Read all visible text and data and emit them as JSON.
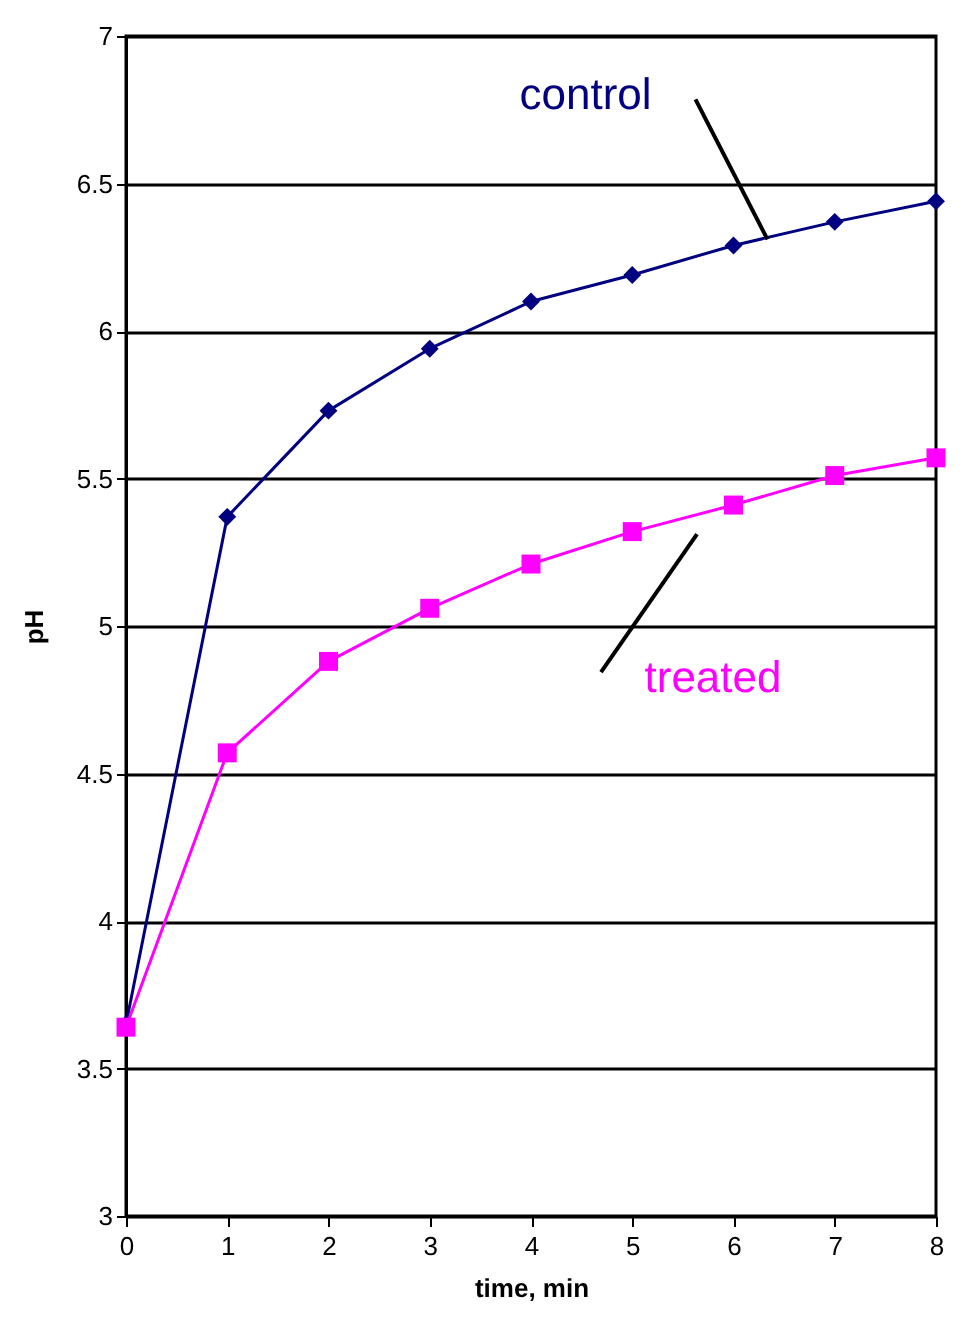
{
  "chart_data": {
    "type": "line",
    "xlabel": "time, min",
    "ylabel": "pH",
    "x": [
      0,
      1,
      2,
      3,
      4,
      5,
      6,
      7,
      8
    ],
    "series": [
      {
        "name": "control",
        "color": "#000080",
        "marker": "diamond",
        "values": [
          3.65,
          5.37,
          5.73,
          5.94,
          6.1,
          6.19,
          6.29,
          6.37,
          6.44
        ]
      },
      {
        "name": "treated",
        "color": "#ff00ff",
        "marker": "square",
        "values": [
          3.64,
          4.57,
          4.88,
          5.06,
          5.21,
          5.32,
          5.41,
          5.51,
          5.57
        ]
      }
    ],
    "xlim": [
      0,
      8
    ],
    "xticks": [
      0,
      1,
      2,
      3,
      4,
      5,
      6,
      7,
      8
    ],
    "ylim": [
      3,
      7
    ],
    "yticks": [
      3,
      3.5,
      4,
      4.5,
      5,
      5.5,
      6,
      6.5,
      7
    ],
    "grid": "y",
    "legend": false
  }
}
